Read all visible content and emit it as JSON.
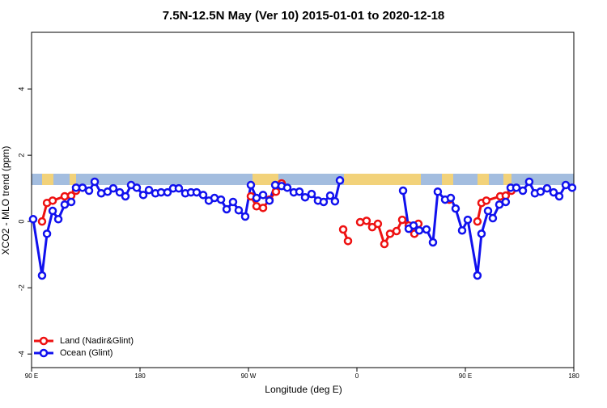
{
  "chart_data": {
    "type": "line",
    "title": "7.5N-12.5N May (Ver 10)   2015-01-01 to 2020-12-18",
    "x_label": "Longitude (deg E)",
    "y_label": "XCO2 - MLO trend (ppm)",
    "xlim": [
      90,
      540
    ],
    "ylim": [
      -4.41,
      5.71
    ],
    "xticks": [
      {
        "value": 90,
        "label": "90 E"
      },
      180,
      {
        "value": 270,
        "label": "90 W"
      },
      {
        "value": 360,
        "label": "0"
      },
      {
        "value": 450,
        "label": "90 E"
      },
      {
        "value": 540,
        "label": "180"
      }
    ],
    "yticks": [
      -4,
      -2,
      0,
      2,
      4
    ],
    "legend": "bottom-left",
    "series": [
      {
        "name": "Land (Nadir&Glint)",
        "color": "#ee1111",
        "x": [
          98.7,
          102.8,
          107.5,
          117.5,
          122.9,
          126.9,
          null,
          272.0,
          276.7,
          282.1,
          287.4,
          292.8,
          297.5,
          null,
          348.6,
          352.6,
          null,
          362.7,
          368.0,
          372.7,
          377.4,
          382.8,
          387.5,
          392.9,
          397.6,
          403.0,
          407.7,
          411.0,
          null,
          436.6,
          null,
          460.0,
          463.4,
          467.4,
          478.9,
          483.5,
          488.2
        ],
        "values": [
          0.0,
          0.56,
          0.63,
          0.76,
          0.78,
          0.93,
          null,
          0.76,
          0.46,
          0.41,
          0.66,
          0.9,
          1.15,
          null,
          -0.24,
          -0.59,
          null,
          -0.02,
          0.02,
          -0.17,
          -0.07,
          -0.68,
          -0.37,
          -0.29,
          0.05,
          -0.12,
          -0.37,
          -0.07,
          null,
          0.66,
          null,
          0.0,
          0.56,
          0.63,
          0.76,
          0.78,
          0.93
        ]
      },
      {
        "name": "Ocean (Glint)",
        "color": "#1111ee",
        "x": [
          91.3,
          98.7,
          102.8,
          107.5,
          112.2,
          117.5,
          122.9,
          126.9,
          132.3,
          137.7,
          142.4,
          147.8,
          153.1,
          157.8,
          163.2,
          167.9,
          172.6,
          177.3,
          182.7,
          187.4,
          192.8,
          197.5,
          202.8,
          207.5,
          212.2,
          217.6,
          222.3,
          227.0,
          232.4,
          237.1,
          241.8,
          247.2,
          251.9,
          257.2,
          261.9,
          267.3,
          272.0,
          276.7,
          282.1,
          287.4,
          292.2,
          297.5,
          302.2,
          307.6,
          312.3,
          317.0,
          322.4,
          327.7,
          332.4,
          337.8,
          341.8,
          345.9,
          null,
          398.3,
          403.0,
          407.0,
          411.7,
          417.7,
          423.1,
          427.1,
          433.2,
          437.9,
          441.9,
          447.3,
          452.0,
          460.0,
          463.4,
          468.8,
          472.8,
          478.2,
          483.5,
          487.6,
          492.3,
          497.7,
          503.0,
          507.7,
          512.4,
          517.8,
          523.2,
          527.9,
          533.3,
          538.6
        ],
        "values": [
          0.07,
          -1.63,
          -0.37,
          0.32,
          0.07,
          0.51,
          0.59,
          1.02,
          1.02,
          0.93,
          1.2,
          0.85,
          0.9,
          1.0,
          0.88,
          0.76,
          1.1,
          1.02,
          0.8,
          0.95,
          0.85,
          0.88,
          0.88,
          1.0,
          1.0,
          0.85,
          0.88,
          0.88,
          0.8,
          0.63,
          0.71,
          0.66,
          0.37,
          0.59,
          0.34,
          0.15,
          1.1,
          0.71,
          0.8,
          0.63,
          1.1,
          1.07,
          1.02,
          0.88,
          0.9,
          0.73,
          0.83,
          0.63,
          0.59,
          0.78,
          0.61,
          1.24,
          null,
          0.93,
          -0.22,
          -0.12,
          -0.27,
          -0.24,
          -0.63,
          0.9,
          0.66,
          0.71,
          0.39,
          -0.27,
          0.05,
          -1.63,
          -0.37,
          0.32,
          0.1,
          0.51,
          0.59,
          1.02,
          1.02,
          0.93,
          1.2,
          0.85,
          0.9,
          1.0,
          0.88,
          0.76,
          1.1,
          1.02
        ]
      }
    ]
  }
}
